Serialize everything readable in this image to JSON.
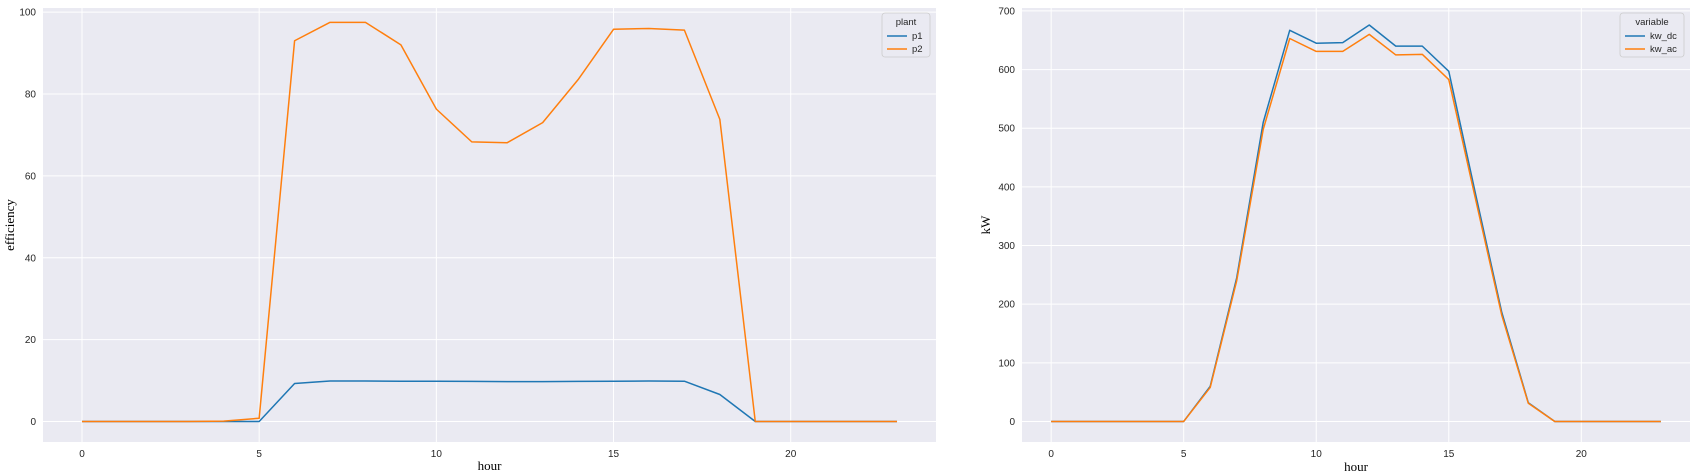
{
  "chart_data": [
    {
      "type": "line",
      "xlabel": "hour",
      "ylabel": "efficiency",
      "xlim": [
        -1.1,
        24.1
      ],
      "ylim": [
        -5,
        101
      ],
      "xticks": [
        0,
        5,
        10,
        15,
        20
      ],
      "yticks": [
        0,
        20,
        40,
        60,
        80,
        100
      ],
      "grid": true,
      "legend": {
        "title": "plant",
        "placement": "top-right"
      },
      "x": [
        0,
        1,
        2,
        3,
        4,
        5,
        6,
        7,
        8,
        9,
        10,
        11,
        12,
        13,
        14,
        15,
        16,
        17,
        18,
        19,
        20,
        21,
        22,
        23
      ],
      "series": [
        {
          "name": "p1",
          "color": "#1f77b4",
          "values": [
            0,
            0,
            0,
            0,
            0,
            0,
            9.3,
            9.9,
            9.9,
            9.85,
            9.85,
            9.8,
            9.75,
            9.75,
            9.8,
            9.85,
            9.9,
            9.85,
            6.6,
            0,
            0,
            0,
            0,
            0
          ]
        },
        {
          "name": "p2",
          "color": "#ff7f0e",
          "values": [
            0,
            0,
            0,
            0,
            0.1,
            0.8,
            93,
            97.5,
            97.5,
            92,
            76.3,
            68.3,
            68.1,
            73,
            83.5,
            95.8,
            96,
            95.6,
            73.8,
            0,
            0,
            0,
            0,
            0
          ]
        }
      ]
    },
    {
      "type": "line",
      "xlabel": "hour",
      "ylabel": "kW",
      "xlim": [
        -1.1,
        24.1
      ],
      "ylim": [
        -35,
        705
      ],
      "xticks": [
        0,
        5,
        10,
        15,
        20
      ],
      "yticks": [
        0,
        100,
        200,
        300,
        400,
        500,
        600,
        700
      ],
      "grid": true,
      "legend": {
        "title": "variable",
        "placement": "top-right"
      },
      "x": [
        0,
        1,
        2,
        3,
        4,
        5,
        6,
        7,
        8,
        9,
        10,
        11,
        12,
        13,
        14,
        15,
        16,
        17,
        18,
        19,
        20,
        21,
        22,
        23
      ],
      "series": [
        {
          "name": "kw_dc",
          "color": "#1f77b4",
          "values": [
            0,
            0,
            0,
            0,
            0,
            0,
            60,
            245,
            510,
            667,
            645,
            646,
            676,
            640,
            640,
            597,
            390,
            186,
            32,
            0,
            0,
            0,
            0,
            0
          ]
        },
        {
          "name": "kw_ac",
          "color": "#ff7f0e",
          "values": [
            0,
            0,
            0,
            0,
            0,
            0,
            58,
            240,
            498,
            653,
            631,
            631,
            660,
            625,
            626,
            583,
            381,
            181,
            31,
            0,
            0,
            0,
            0,
            0
          ]
        }
      ]
    }
  ]
}
